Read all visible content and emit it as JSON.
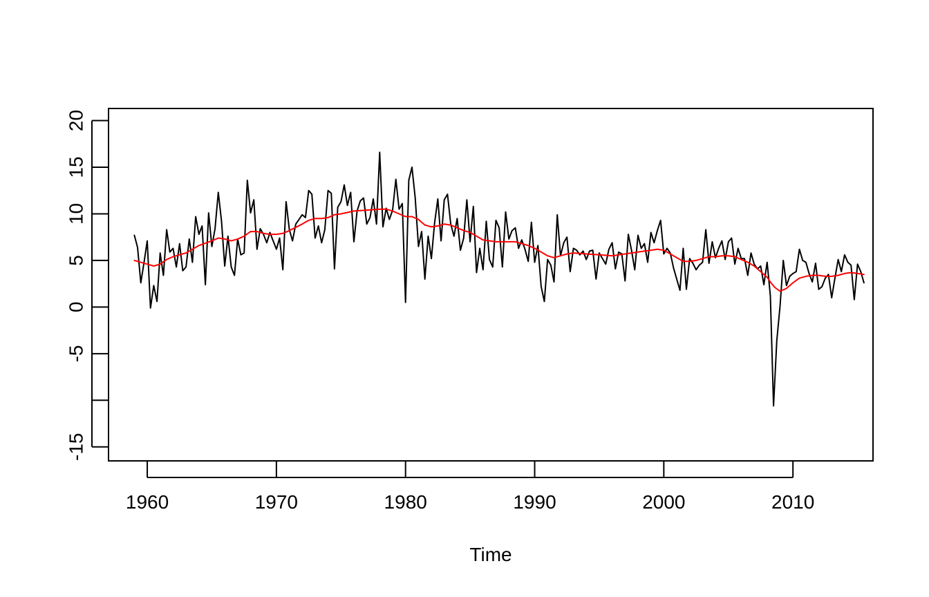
{
  "chart_data": {
    "type": "line",
    "title": "",
    "xlabel": "Time",
    "ylabel": "",
    "xlim": [
      1957.0,
      2016.2
    ],
    "ylim": [
      -16.5,
      21.3
    ],
    "x_ticks": [
      1960,
      1970,
      1980,
      1990,
      2000,
      2010
    ],
    "x_tick_labels": [
      "1960",
      "1970",
      "1980",
      "1990",
      "2000",
      "2010"
    ],
    "y_ticks": [
      -15,
      -10,
      -5,
      0,
      5,
      10,
      15,
      20
    ],
    "y_tick_labels": [
      "-15",
      "",
      "-5",
      "0",
      "5",
      "10",
      "15",
      "20"
    ],
    "grid": false,
    "legend": "none",
    "series": [
      {
        "color": "#000000",
        "line_width": 2,
        "x": [
          1959.0,
          1959.25,
          1959.5,
          1959.75,
          1960.0,
          1960.25,
          1960.5,
          1960.75,
          1961.0,
          1961.25,
          1961.5,
          1961.75,
          1962.0,
          1962.25,
          1962.5,
          1962.75,
          1963.0,
          1963.25,
          1963.5,
          1963.75,
          1964.0,
          1964.25,
          1964.5,
          1964.75,
          1965.0,
          1965.25,
          1965.5,
          1965.75,
          1966.0,
          1966.25,
          1966.5,
          1966.75,
          1967.0,
          1967.25,
          1967.5,
          1967.75,
          1968.0,
          1968.25,
          1968.5,
          1968.75,
          1969.0,
          1969.25,
          1969.5,
          1969.75,
          1970.0,
          1970.25,
          1970.5,
          1970.75,
          1971.0,
          1971.25,
          1971.5,
          1971.75,
          1972.0,
          1972.25,
          1972.5,
          1972.75,
          1973.0,
          1973.25,
          1973.5,
          1973.75,
          1974.0,
          1974.25,
          1974.5,
          1974.75,
          1975.0,
          1975.25,
          1975.5,
          1975.75,
          1976.0,
          1976.25,
          1976.5,
          1976.75,
          1977.0,
          1977.25,
          1977.5,
          1977.75,
          1978.0,
          1978.25,
          1978.5,
          1978.75,
          1979.0,
          1979.25,
          1979.5,
          1979.75,
          1980.0,
          1980.25,
          1980.5,
          1980.75,
          1981.0,
          1981.25,
          1981.5,
          1981.75,
          1982.0,
          1982.25,
          1982.5,
          1982.75,
          1983.0,
          1983.25,
          1983.5,
          1983.75,
          1984.0,
          1984.25,
          1984.5,
          1984.75,
          1985.0,
          1985.25,
          1985.5,
          1985.75,
          1986.0,
          1986.25,
          1986.5,
          1986.75,
          1987.0,
          1987.25,
          1987.5,
          1987.75,
          1988.0,
          1988.25,
          1988.5,
          1988.75,
          1989.0,
          1989.25,
          1989.5,
          1989.75,
          1990.0,
          1990.25,
          1990.5,
          1990.75,
          1991.0,
          1991.25,
          1991.5,
          1991.75,
          1992.0,
          1992.25,
          1992.5,
          1992.75,
          1993.0,
          1993.25,
          1993.5,
          1993.75,
          1994.0,
          1994.25,
          1994.5,
          1994.75,
          1995.0,
          1995.25,
          1995.5,
          1995.75,
          1996.0,
          1996.25,
          1996.5,
          1996.75,
          1997.0,
          1997.25,
          1997.5,
          1997.75,
          1998.0,
          1998.25,
          1998.5,
          1998.75,
          1999.0,
          1999.25,
          1999.5,
          1999.75,
          2000.0,
          2000.25,
          2000.5,
          2000.75,
          2001.0,
          2001.25,
          2001.5,
          2001.75,
          2002.0,
          2002.25,
          2002.5,
          2002.75,
          2003.0,
          2003.25,
          2003.5,
          2003.75,
          2004.0,
          2004.25,
          2004.5,
          2004.75,
          2005.0,
          2005.25,
          2005.5,
          2005.75,
          2006.0,
          2006.25,
          2006.5,
          2006.75,
          2007.0,
          2007.25,
          2007.5,
          2007.75,
          2008.0,
          2008.25,
          2008.5,
          2008.75,
          2009.0,
          2009.25,
          2009.5,
          2009.75,
          2010.0,
          2010.25,
          2010.5,
          2010.75,
          2011.0,
          2011.25,
          2011.5,
          2011.75,
          2012.0,
          2012.25,
          2012.5,
          2012.75,
          2013.0,
          2013.25,
          2013.5,
          2013.75,
          2014.0,
          2014.25,
          2014.5,
          2014.75,
          2015.0,
          2015.25,
          2015.5
        ],
        "values": [
          7.7,
          6.4,
          2.6,
          4.8,
          7.1,
          -0.1,
          2.3,
          0.6,
          5.8,
          3.4,
          8.3,
          5.9,
          6.3,
          4.3,
          6.8,
          3.9,
          4.3,
          7.3,
          4.8,
          9.7,
          7.8,
          8.7,
          2.4,
          10.1,
          6.5,
          8.4,
          12.3,
          9.2,
          4.4,
          7.6,
          4.3,
          3.4,
          7.3,
          5.6,
          5.8,
          13.6,
          10.1,
          11.5,
          6.2,
          8.4,
          7.8,
          6.9,
          8.0,
          7.1,
          6.2,
          7.4,
          4.0,
          11.3,
          8.3,
          7.1,
          8.9,
          9.4,
          9.9,
          9.6,
          12.5,
          12.1,
          7.4,
          8.7,
          6.9,
          8.3,
          12.5,
          12.2,
          4.1,
          10.7,
          11.3,
          13.1,
          10.9,
          12.3,
          7.0,
          10.3,
          11.4,
          11.7,
          8.9,
          9.6,
          11.6,
          8.9,
          16.6,
          8.6,
          10.6,
          9.4,
          10.4,
          13.7,
          10.5,
          11.1,
          0.5,
          13.6,
          15.0,
          11.7,
          6.5,
          8.1,
          3.0,
          7.6,
          5.2,
          9.0,
          11.6,
          7.1,
          11.5,
          12.1,
          8.9,
          7.6,
          9.5,
          6.1,
          7.4,
          11.5,
          7.0,
          10.8,
          3.7,
          6.3,
          4.0,
          9.2,
          5.1,
          4.3,
          9.3,
          8.5,
          4.3,
          10.2,
          7.3,
          8.2,
          8.5,
          6.3,
          7.2,
          6.2,
          4.9,
          9.1,
          4.8,
          6.6,
          2.2,
          0.6,
          5.1,
          4.5,
          2.7,
          9.9,
          5.5,
          6.9,
          7.5,
          3.8,
          6.3,
          6.1,
          5.6,
          6.0,
          5.1,
          6.0,
          6.1,
          3.0,
          5.8,
          5.2,
          4.6,
          6.2,
          6.9,
          4.1,
          5.9,
          5.7,
          2.8,
          7.8,
          6.1,
          4.0,
          7.7,
          6.3,
          6.8,
          4.8,
          8.0,
          6.9,
          8.2,
          9.3,
          5.7,
          6.3,
          5.8,
          4.2,
          3.0,
          1.8,
          6.3,
          1.9,
          5.2,
          4.7,
          4.0,
          4.5,
          4.8,
          8.3,
          4.7,
          7.0,
          5.3,
          6.3,
          7.1,
          5.1,
          7.0,
          7.4,
          4.6,
          6.3,
          5.2,
          5.2,
          3.4,
          5.8,
          4.6,
          4.1,
          4.4,
          2.4,
          4.8,
          1.2,
          -10.6,
          -3.6,
          0.1,
          5.0,
          2.3,
          3.3,
          3.6,
          3.8,
          6.2,
          5.0,
          4.8,
          3.6,
          2.7,
          4.7,
          1.9,
          2.2,
          3.1,
          3.5,
          1.0,
          3.1,
          5.1,
          3.8,
          5.6,
          4.8,
          4.5,
          0.8,
          4.6,
          3.8,
          2.6
        ]
      },
      {
        "color": "#ff0000",
        "line_width": 2,
        "x": [
          1959.0,
          1960.0,
          1960.5,
          1961.0,
          1961.5,
          1962.0,
          1963.0,
          1964.0,
          1965.0,
          1965.5,
          1966.0,
          1966.5,
          1967.0,
          1967.5,
          1968.0,
          1968.5,
          1969.0,
          1969.5,
          1970.0,
          1970.5,
          1971.0,
          1972.0,
          1972.5,
          1973.0,
          1973.5,
          1974.0,
          1974.5,
          1975.0,
          1976.0,
          1977.0,
          1978.0,
          1978.5,
          1979.0,
          1979.5,
          1980.0,
          1980.5,
          1981.0,
          1981.5,
          1982.0,
          1982.5,
          1983.0,
          1983.5,
          1984.0,
          1984.5,
          1985.0,
          1985.5,
          1986.0,
          1987.0,
          1988.0,
          1988.5,
          1989.0,
          1989.5,
          1990.0,
          1990.5,
          1991.0,
          1991.5,
          1992.0,
          1992.5,
          1993.0,
          1994.0,
          1995.0,
          1996.0,
          1997.0,
          1997.5,
          1998.0,
          1998.5,
          1999.0,
          1999.5,
          2000.0,
          2000.5,
          2001.0,
          2001.5,
          2002.0,
          2002.5,
          2003.0,
          2003.5,
          2004.0,
          2004.5,
          2005.0,
          2005.5,
          2006.0,
          2006.5,
          2007.0,
          2007.5,
          2008.0,
          2008.3,
          2008.6,
          2009.0,
          2009.5,
          2010.0,
          2010.5,
          2011.0,
          2011.5,
          2012.0,
          2012.5,
          2013.0,
          2013.5,
          2014.0,
          2014.5,
          2015.0,
          2015.5
        ],
        "values": [
          5.0,
          4.6,
          4.4,
          4.6,
          5.1,
          5.4,
          5.8,
          6.6,
          7.1,
          7.4,
          7.3,
          7.1,
          7.3,
          7.6,
          8.1,
          8.1,
          7.9,
          7.8,
          7.8,
          7.9,
          8.2,
          8.9,
          9.3,
          9.5,
          9.5,
          9.6,
          9.9,
          10.0,
          10.3,
          10.4,
          10.5,
          10.5,
          10.3,
          10.0,
          9.7,
          9.7,
          9.4,
          8.8,
          8.6,
          8.7,
          8.9,
          8.8,
          8.5,
          8.2,
          8.0,
          7.6,
          7.2,
          7.0,
          7.0,
          7.0,
          6.8,
          6.6,
          6.3,
          5.9,
          5.5,
          5.3,
          5.5,
          5.7,
          5.8,
          5.7,
          5.6,
          5.5,
          5.7,
          5.8,
          5.9,
          6.0,
          6.1,
          6.2,
          6.1,
          5.7,
          5.3,
          4.9,
          4.9,
          5.0,
          5.2,
          5.4,
          5.4,
          5.5,
          5.5,
          5.4,
          5.1,
          4.8,
          4.4,
          3.8,
          3.2,
          2.6,
          2.1,
          1.7,
          2.0,
          2.6,
          3.1,
          3.3,
          3.4,
          3.4,
          3.3,
          3.3,
          3.4,
          3.6,
          3.7,
          3.6,
          3.5
        ]
      }
    ]
  }
}
